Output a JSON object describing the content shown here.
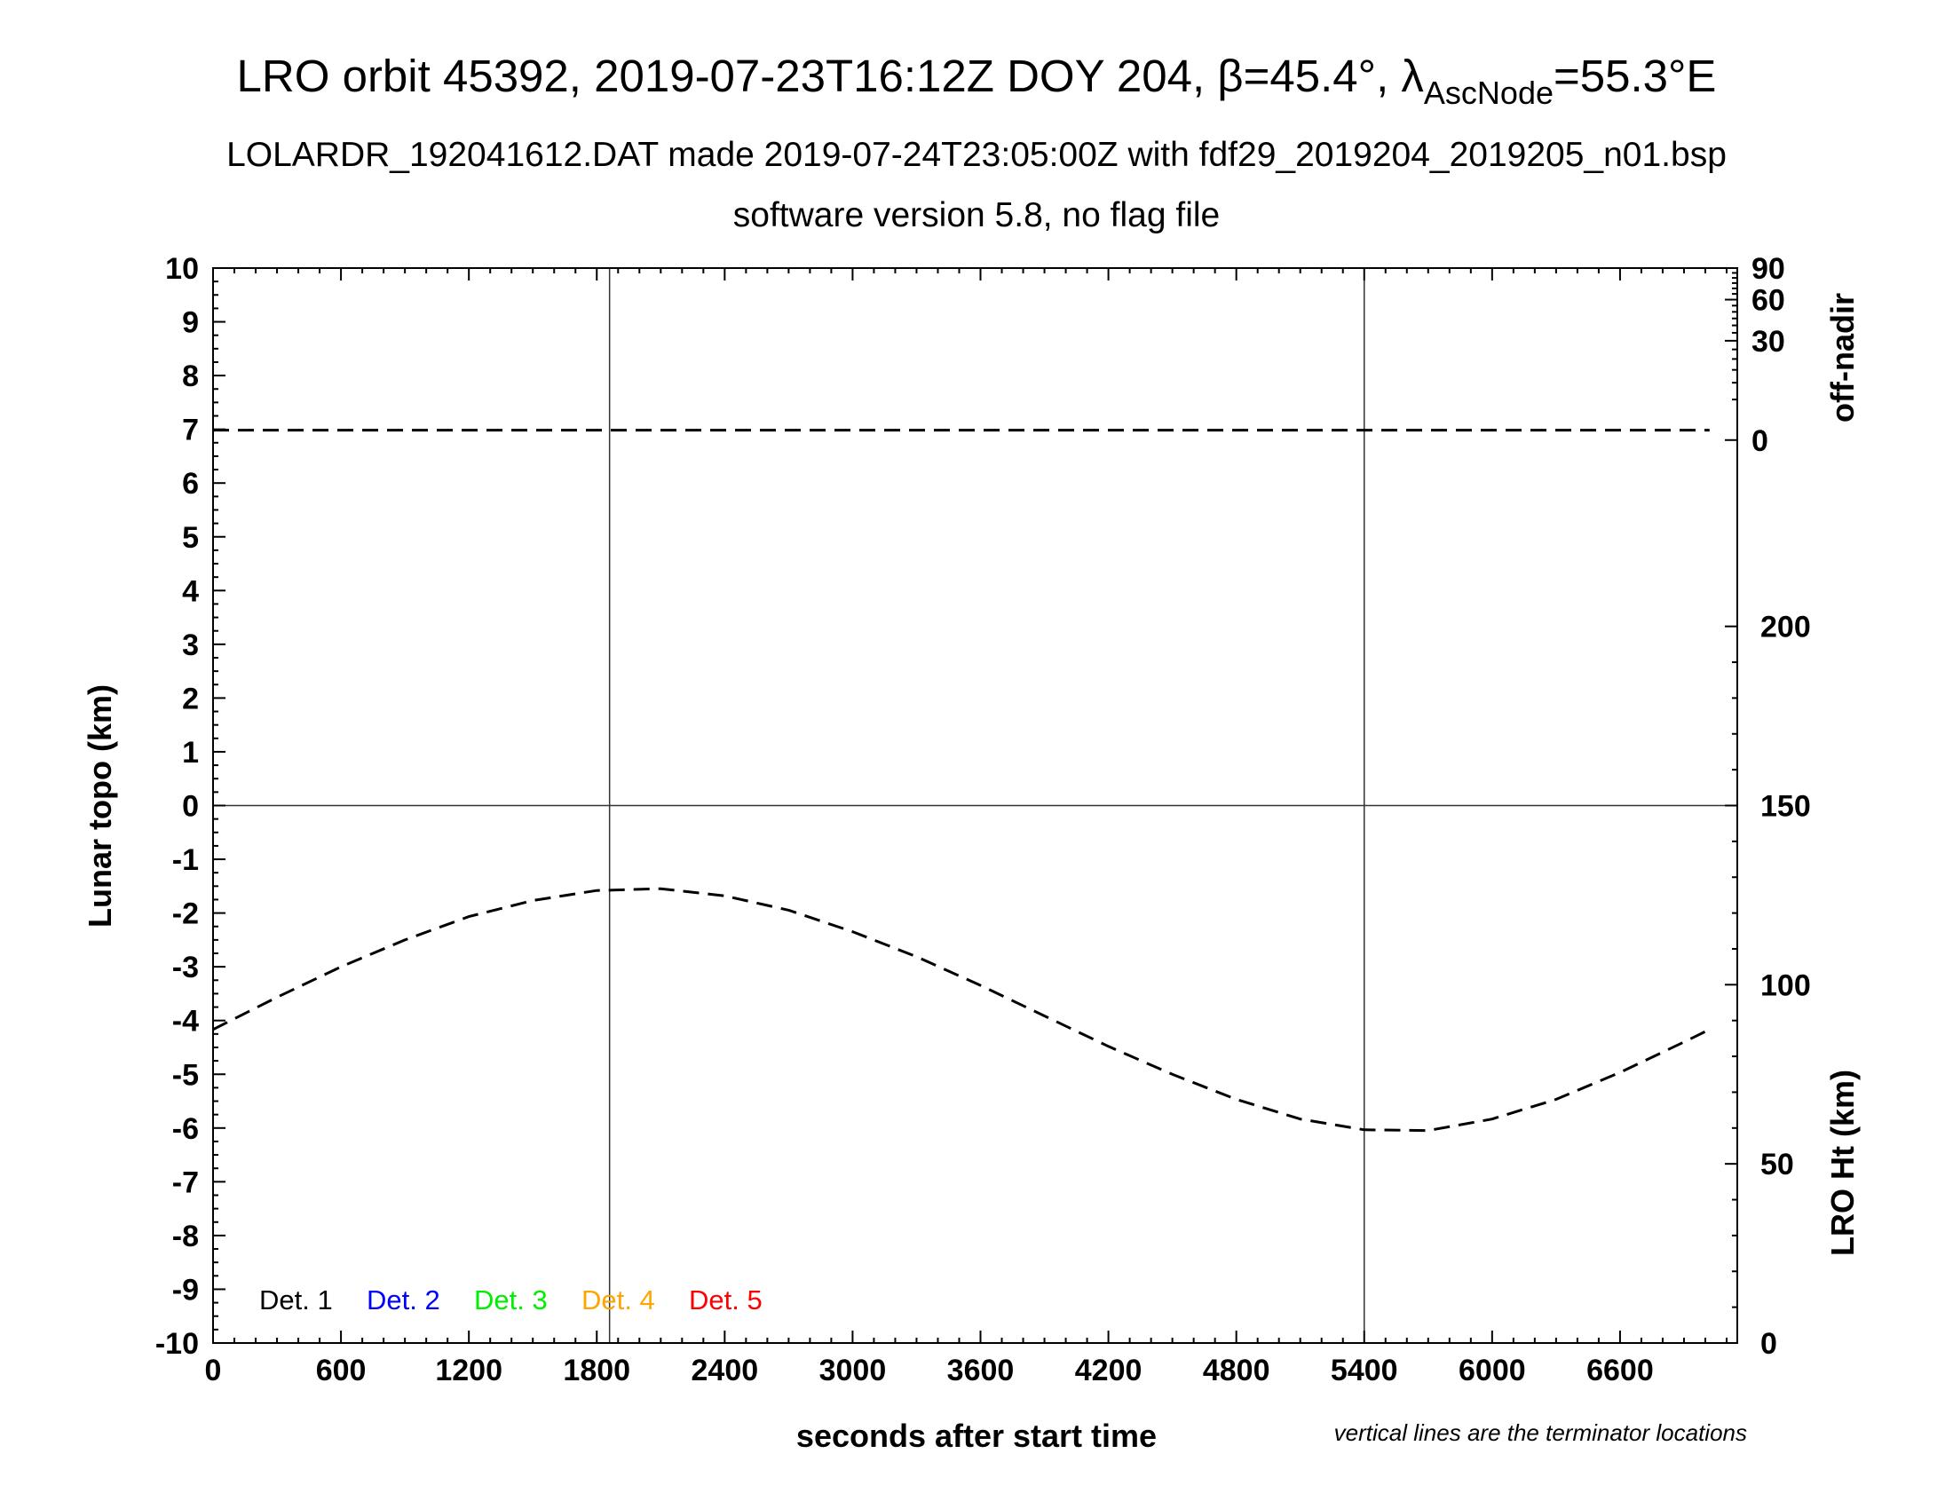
{
  "header": {
    "title_main": "LRO orbit 45392, 2019-07-23T16:12Z DOY 204, β=45.4°, λ",
    "title_sub": "AscNode",
    "title_end": "=55.3°E",
    "line2": "LOLARDR_192041612.DAT made 2019-07-24T23:05:00Z with fdf29_2019204_2019205_n01.bsp",
    "line3": "software version 5.8, no flag file"
  },
  "chart_data": {
    "type": "line",
    "xlabel": "seconds after start time",
    "ylabel": "Lunar topo (km)",
    "y2label_top": "off-nadir",
    "y2label_bottom": "LRO Ht (km)",
    "note": "vertical lines are the terminator locations",
    "xlim": [
      0,
      7150
    ],
    "ylim": [
      -10,
      10
    ],
    "xticks": [
      0,
      600,
      1200,
      1800,
      2400,
      3000,
      3600,
      4200,
      4800,
      5400,
      6000,
      6600
    ],
    "yticks": [
      10,
      9,
      8,
      7,
      6,
      5,
      4,
      3,
      2,
      1,
      0,
      -1,
      -2,
      -3,
      -4,
      -5,
      -6,
      -7,
      -8,
      -9,
      -10
    ],
    "offnadir_ticks": [
      0,
      30,
      60,
      90
    ],
    "height_ticks": [
      0,
      50,
      100,
      150,
      200
    ],
    "height_range_km": [
      0,
      300
    ],
    "terminator_lines_x": [
      1860,
      5400
    ],
    "zero_line_y": 0,
    "legend": [
      {
        "label": "Det. 1",
        "color": "#000000"
      },
      {
        "label": "Det. 2",
        "color": "#0000ff"
      },
      {
        "label": "Det. 3",
        "color": "#00ee00"
      },
      {
        "label": "Det. 4",
        "color": "#ffa500"
      },
      {
        "label": "Det. 5",
        "color": "#ff0000"
      }
    ],
    "series": [
      {
        "style": "dashed",
        "axis": "off-nadir",
        "x": [
          0,
          7020
        ],
        "y": [
          0.3,
          0.3
        ]
      },
      {
        "style": "dashed",
        "axis": "LRO Ht (km)",
        "x": [
          0,
          300,
          600,
          900,
          1200,
          1500,
          1800,
          2100,
          2400,
          2700,
          3000,
          3300,
          3600,
          3900,
          4200,
          4500,
          4800,
          5100,
          5400,
          5700,
          6000,
          6300,
          6600,
          6900,
          7020
        ],
        "y": [
          87.5,
          96.5,
          105,
          112.5,
          119,
          123.5,
          126.3,
          126.8,
          124.8,
          120.8,
          114.8,
          107.8,
          99.8,
          91.3,
          82.8,
          75.0,
          68.0,
          62.5,
          59.5,
          59.3,
          62.5,
          68.0,
          75.5,
          84.0,
          87.5
        ]
      }
    ]
  }
}
